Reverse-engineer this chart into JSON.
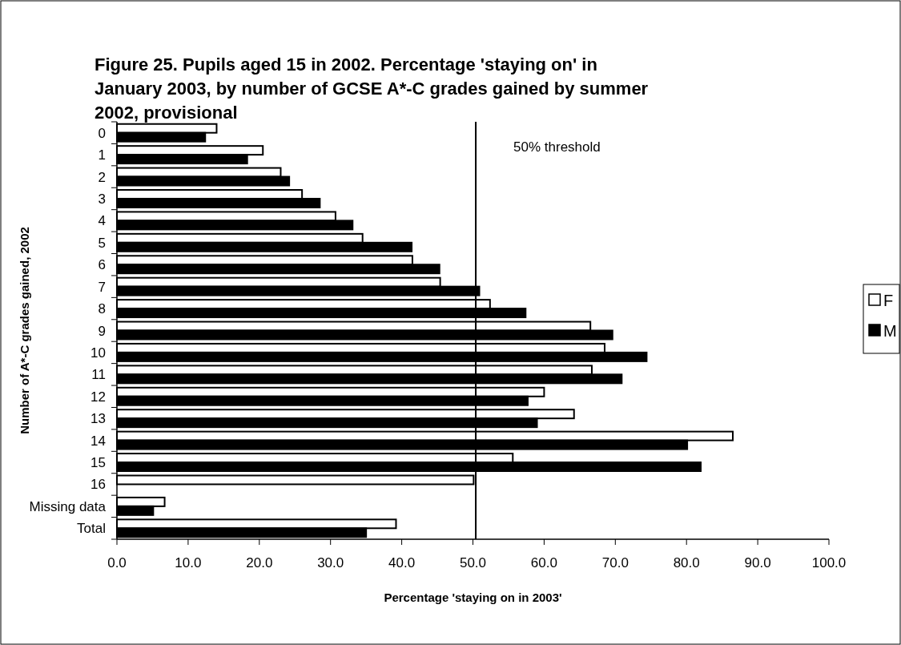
{
  "chart_data": {
    "type": "bar",
    "orientation": "horizontal",
    "title": "Figure 25. Pupils aged 15 in 2002. Percentage 'staying on' in January 2003, by number of GCSE A*-C grades gained by summer 2002, provisional",
    "xlabel": "Percentage 'staying on in 2003'",
    "ylabel": "Number of A*-C grades gained, 2002",
    "categories": [
      "0",
      "1",
      "2",
      "3",
      "4",
      "5",
      "6",
      "7",
      "8",
      "9",
      "10",
      "11",
      "12",
      "13",
      "14",
      "15",
      "16",
      "Missing data",
      "Total"
    ],
    "series": [
      {
        "name": "F",
        "color": "#ffffff",
        "values": [
          14.0,
          20.5,
          23.0,
          26.0,
          30.7,
          34.5,
          41.5,
          45.4,
          52.4,
          66.5,
          68.5,
          66.7,
          60.0,
          64.2,
          86.5,
          55.6,
          50.1,
          6.7,
          39.2
        ]
      },
      {
        "name": "M",
        "color": "#000000",
        "values": [
          12.4,
          18.3,
          24.2,
          28.5,
          33.1,
          41.4,
          45.3,
          50.9,
          57.4,
          69.6,
          74.4,
          70.9,
          57.7,
          59.0,
          80.1,
          82.0,
          null,
          5.1,
          35.0
        ]
      }
    ],
    "xlim": [
      0,
      100
    ],
    "xticks": [
      {
        "value": 0,
        "label": "0.0"
      },
      {
        "value": 10,
        "label": "10.0"
      },
      {
        "value": 20,
        "label": "20.0"
      },
      {
        "value": 30,
        "label": "30.0"
      },
      {
        "value": 40,
        "label": "40.0"
      },
      {
        "value": 50,
        "label": "50.0"
      },
      {
        "value": 60,
        "label": "60.0"
      },
      {
        "value": 70,
        "label": "70.0"
      },
      {
        "value": 80,
        "label": "80.0"
      },
      {
        "value": 90,
        "label": "90.0"
      },
      {
        "value": 100,
        "label": "100.0"
      }
    ],
    "ref_lines": [
      {
        "axis": "x",
        "value": 50.4,
        "label": "50% threshold",
        "color": "#000000"
      }
    ],
    "legend": "right",
    "grid": false
  }
}
